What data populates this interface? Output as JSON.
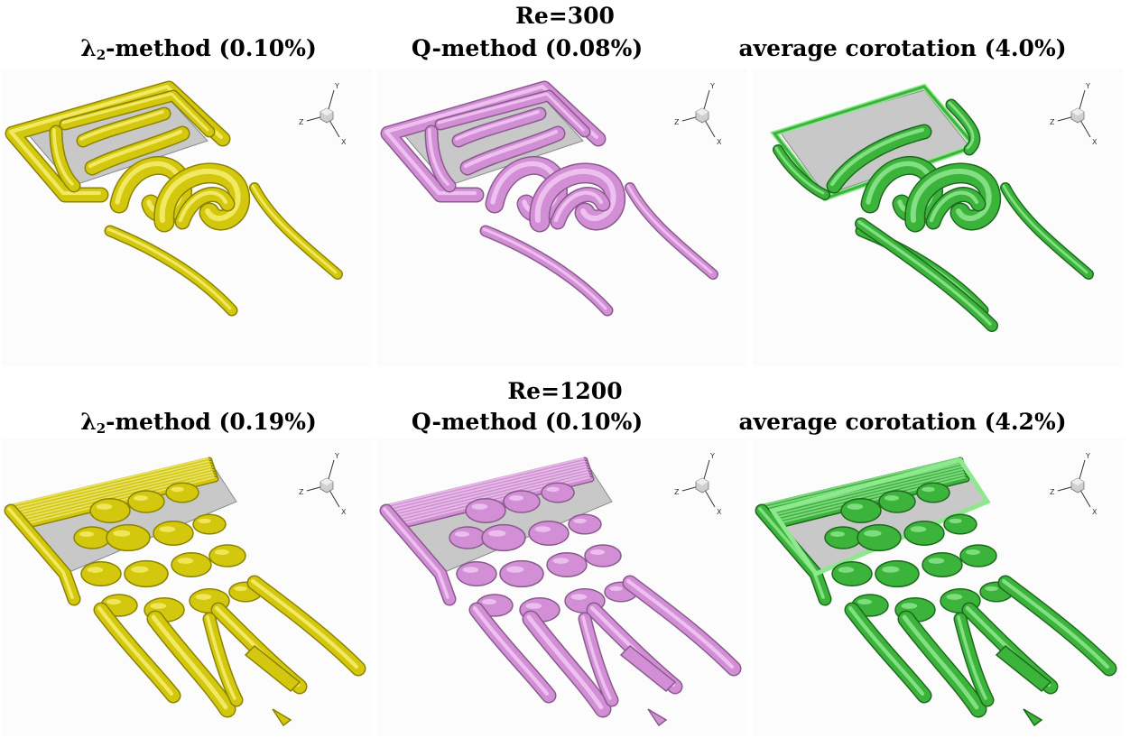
{
  "rows": [
    {
      "title": "Re=300",
      "panels": [
        {
          "label_symbol": "λ",
          "label_sub": "2",
          "label_text": "-method (0.10%)",
          "color": "#d4c80e",
          "shade": "#8c8300",
          "highlight": "#f6ee70"
        },
        {
          "label_symbol": "",
          "label_sub": "",
          "label_text": "Q-method (0.08%)",
          "color": "#d38fd6",
          "shade": "#8a5a8e",
          "highlight": "#f2c9f3"
        },
        {
          "label_symbol": "",
          "label_sub": "",
          "label_text": "average corotation (4.0%)",
          "color": "#3cb43c",
          "shade": "#1d6a1d",
          "highlight": "#8ee88e"
        }
      ]
    },
    {
      "title": "Re=1200",
      "panels": [
        {
          "label_symbol": "λ",
          "label_sub": "2",
          "label_text": "-method (0.19%)",
          "color": "#d4c80e",
          "shade": "#8c8300",
          "highlight": "#f6ee70"
        },
        {
          "label_symbol": "",
          "label_sub": "",
          "label_text": "Q-method (0.10%)",
          "color": "#d38fd6",
          "shade": "#8a5a8e",
          "highlight": "#f2c9f3"
        },
        {
          "label_symbol": "",
          "label_sub": "",
          "label_text": "average corotation (4.2%)",
          "color": "#3cb43c",
          "shade": "#1d6a1d",
          "highlight": "#8ee88e"
        }
      ]
    }
  ],
  "axes_labels": {
    "y": "Y",
    "z": "Z",
    "x": "X"
  }
}
